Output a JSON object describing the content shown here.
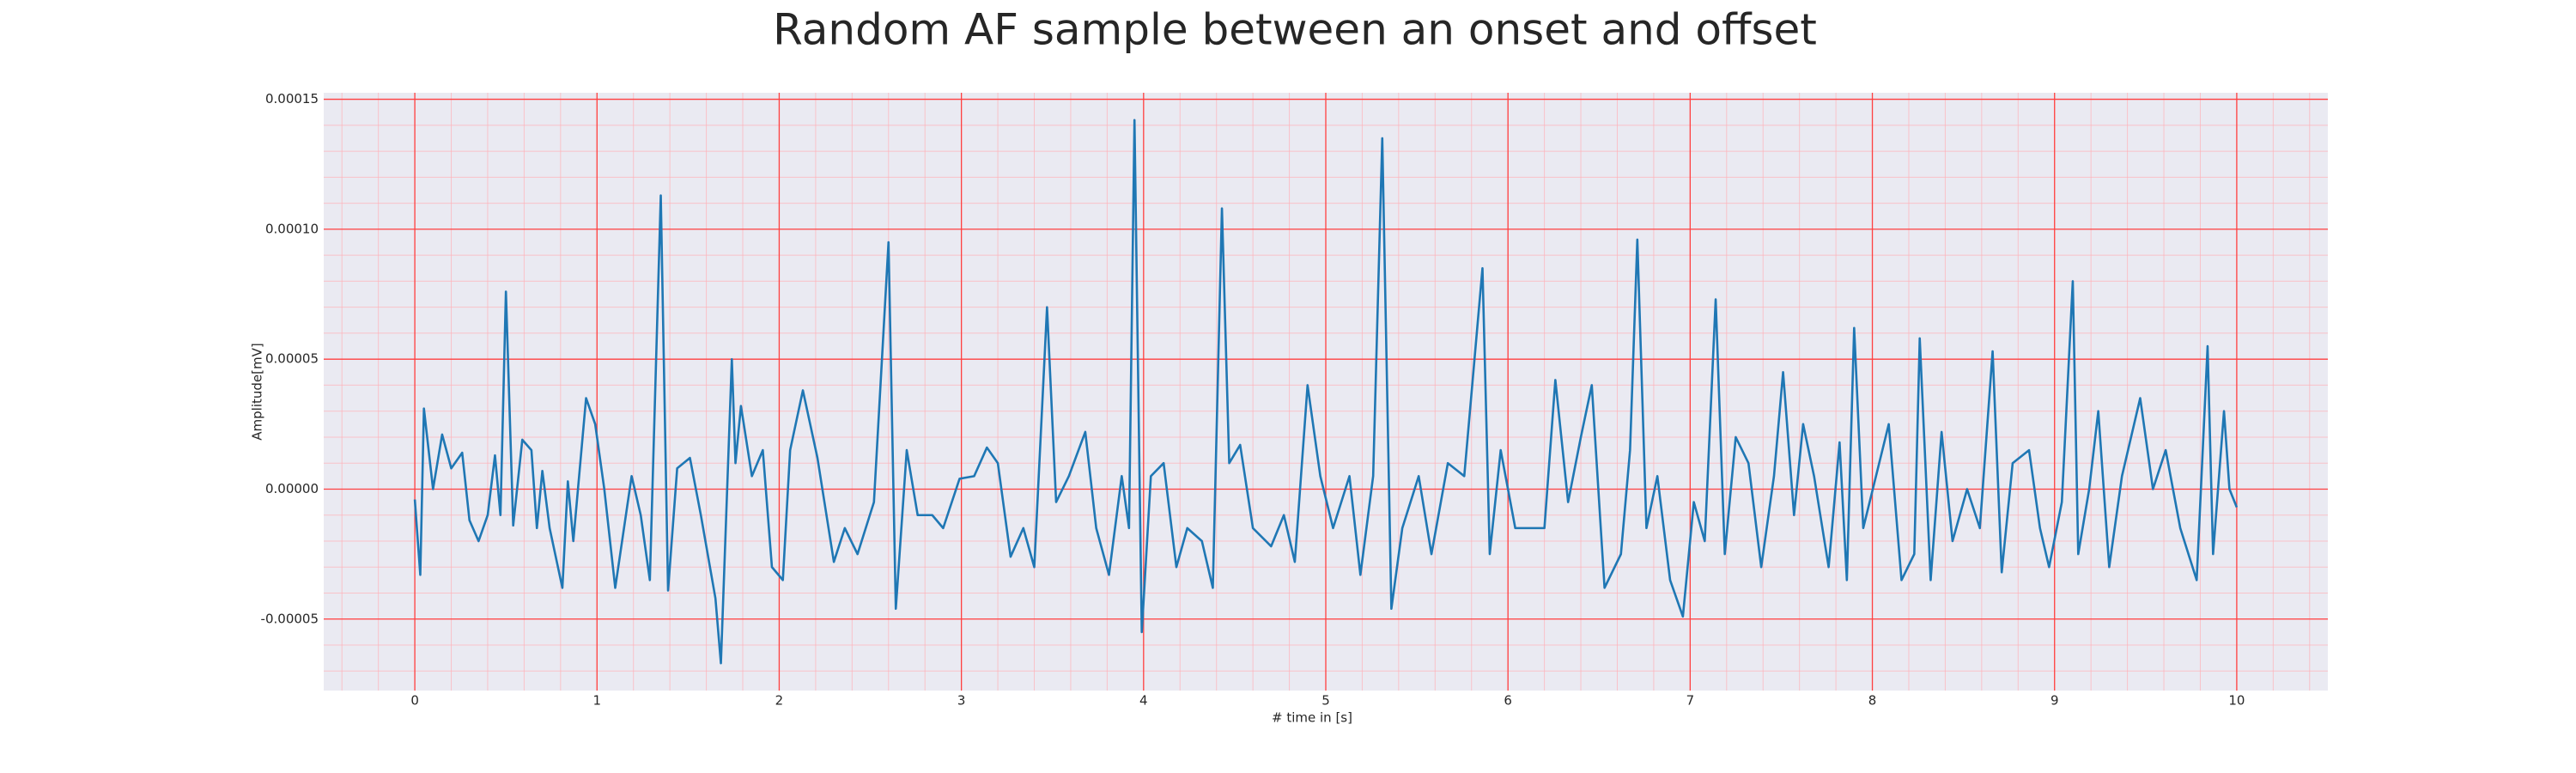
{
  "chart_data": {
    "type": "line",
    "title": "Random AF sample between an onset and offset",
    "xlabel": "# time in [s]",
    "ylabel": "Amplitude[mV]",
    "color": "#1f77b4",
    "grid": true,
    "minor_grid": true,
    "xlim": [
      -0.5,
      10.5
    ],
    "ylim": [
      -7.75e-05,
      0.0001525
    ],
    "xticks": [
      0,
      1,
      2,
      3,
      4,
      5,
      6,
      7,
      8,
      9,
      10
    ],
    "yticks": [
      {
        "value": -5e-05,
        "label": "-0.00005"
      },
      {
        "value": 0,
        "label": "0.00000"
      },
      {
        "value": 5e-05,
        "label": "0.00005"
      },
      {
        "value": 0.0001,
        "label": "0.00010"
      },
      {
        "value": 0.00015,
        "label": "0.00015"
      }
    ],
    "xminorticks": [
      -0.4,
      -0.2,
      0,
      0.2,
      0.4,
      0.6,
      0.8,
      1,
      1.2,
      1.4,
      1.6,
      1.8,
      2,
      2.2,
      2.4,
      2.6,
      2.8,
      3,
      3.2,
      3.4,
      3.6,
      3.8,
      4,
      4.2,
      4.4,
      4.6,
      4.8,
      5,
      5.2,
      5.4,
      5.6,
      5.8,
      6,
      6.2,
      6.4,
      6.6,
      6.8,
      7,
      7.2,
      7.4,
      7.6,
      7.8,
      8,
      8.2,
      8.4,
      8.6,
      8.8,
      9,
      9.2,
      9.4,
      9.6,
      9.8,
      10,
      10.2,
      10.4
    ],
    "yminorticks": [
      -7e-05,
      -6e-05,
      -5e-05,
      -4e-05,
      -3e-05,
      -2e-05,
      -1e-05,
      0,
      1e-05,
      2e-05,
      3e-05,
      4e-05,
      5e-05,
      6e-05,
      7e-05,
      8e-05,
      9e-05,
      0.0001,
      0.00011,
      0.00012,
      0.00013,
      0.00014,
      0.00015
    ],
    "x": [
      0,
      0.03,
      0.05,
      0.1,
      0.15,
      0.2,
      0.26,
      0.3,
      0.35,
      0.4,
      0.44,
      0.47,
      0.5,
      0.54,
      0.59,
      0.64,
      0.67,
      0.7,
      0.74,
      0.81,
      0.84,
      0.87,
      0.94,
      0.99,
      1.04,
      1.1,
      1.19,
      1.24,
      1.29,
      1.35,
      1.39,
      1.44,
      1.51,
      1.57,
      1.65,
      1.68,
      1.74,
      1.76,
      1.79,
      1.85,
      1.91,
      1.96,
      2.02,
      2.06,
      2.13,
      2.21,
      2.3,
      2.36,
      2.43,
      2.52,
      2.6,
      2.64,
      2.7,
      2.76,
      2.84,
      2.9,
      2.99,
      3.07,
      3.14,
      3.2,
      3.27,
      3.34,
      3.4,
      3.47,
      3.52,
      3.59,
      3.68,
      3.74,
      3.81,
      3.88,
      3.92,
      3.95,
      3.99,
      4.04,
      4.11,
      4.18,
      4.24,
      4.32,
      4.38,
      4.43,
      4.47,
      4.53,
      4.6,
      4.7,
      4.77,
      4.83,
      4.9,
      4.97,
      5.04,
      5.13,
      5.19,
      5.26,
      5.31,
      5.36,
      5.42,
      5.51,
      5.58,
      5.67,
      5.76,
      5.86,
      5.9,
      5.96,
      6.04,
      6.13,
      6.2,
      6.26,
      6.33,
      6.4,
      6.46,
      6.53,
      6.62,
      6.67,
      6.71,
      6.76,
      6.82,
      6.89,
      6.96,
      7.02,
      7.08,
      7.14,
      7.19,
      7.25,
      7.32,
      7.39,
      7.46,
      7.51,
      7.57,
      7.62,
      7.68,
      7.76,
      7.82,
      7.86,
      7.9,
      7.95,
      8.02,
      8.09,
      8.16,
      8.23,
      8.26,
      8.32,
      8.38,
      8.44,
      8.52,
      8.59,
      8.66,
      8.71,
      8.77,
      8.86,
      8.92,
      8.97,
      9.04,
      9.1,
      9.13,
      9.19,
      9.24,
      9.3,
      9.37,
      9.47,
      9.54,
      9.61,
      9.69,
      9.78,
      9.84,
      9.87,
      9.93,
      9.96,
      10
    ],
    "values": [
      -4e-06,
      -3.3e-05,
      3.1e-05,
      0,
      2.1e-05,
      8e-06,
      1.4e-05,
      -1.2e-05,
      -2e-05,
      -1e-05,
      1.3e-05,
      -1e-05,
      7.6e-05,
      -1.4e-05,
      1.9e-05,
      1.5e-05,
      -1.5e-05,
      7e-06,
      -1.5e-05,
      -3.8e-05,
      3e-06,
      -2e-05,
      3.5e-05,
      2.5e-05,
      0,
      -3.8e-05,
      5e-06,
      -1e-05,
      -3.5e-05,
      0.000113,
      -3.9e-05,
      8e-06,
      1.2e-05,
      -1e-05,
      -4.2e-05,
      -6.7e-05,
      5e-05,
      1e-05,
      3.2e-05,
      5e-06,
      1.5e-05,
      -3e-05,
      -3.5e-05,
      1.5e-05,
      3.8e-05,
      1.2e-05,
      -2.8e-05,
      -1.5e-05,
      -2.5e-05,
      -5e-06,
      9.5e-05,
      -4.6e-05,
      1.5e-05,
      -1e-05,
      -1e-05,
      -1.5e-05,
      4e-06,
      5e-06,
      1.6e-05,
      1e-05,
      -2.6e-05,
      -1.5e-05,
      -3e-05,
      7e-05,
      -5e-06,
      5e-06,
      2.2e-05,
      -1.5e-05,
      -3.3e-05,
      5e-06,
      -1.5e-05,
      0.000142,
      -5.5e-05,
      5e-06,
      1e-05,
      -3e-05,
      -1.5e-05,
      -2e-05,
      -3.8e-05,
      0.000108,
      1e-05,
      1.7e-05,
      -1.5e-05,
      -2.2e-05,
      -1e-05,
      -2.8e-05,
      4e-05,
      5e-06,
      -1.5e-05,
      5e-06,
      -3.3e-05,
      5e-06,
      0.000135,
      -4.6e-05,
      -1.5e-05,
      5e-06,
      -2.5e-05,
      1e-05,
      5e-06,
      8.5e-05,
      -2.5e-05,
      1.5e-05,
      -1.5e-05,
      -1.5e-05,
      -1.5e-05,
      4.2e-05,
      -5e-06,
      2e-05,
      4e-05,
      -3.8e-05,
      -2.5e-05,
      1.5e-05,
      9.6e-05,
      -1.5e-05,
      5e-06,
      -3.5e-05,
      -4.9e-05,
      -5e-06,
      -2e-05,
      7.3e-05,
      -2.5e-05,
      2e-05,
      1e-05,
      -3e-05,
      5e-06,
      4.5e-05,
      -1e-05,
      2.5e-05,
      5e-06,
      -3e-05,
      1.8e-05,
      -3.5e-05,
      6.2e-05,
      -1.5e-05,
      5e-06,
      2.5e-05,
      -3.5e-05,
      -2.5e-05,
      5.8e-05,
      -3.5e-05,
      2.2e-05,
      -2e-05,
      0,
      -1.5e-05,
      5.3e-05,
      -3.2e-05,
      1e-05,
      1.5e-05,
      -1.5e-05,
      -3e-05,
      -5e-06,
      8e-05,
      -2.5e-05,
      0,
      3e-05,
      -3e-05,
      5e-06,
      3.5e-05,
      0,
      1.5e-05,
      -1.5e-05,
      -3.5e-05,
      5.5e-05,
      -2.5e-05,
      3e-05,
      0,
      -7e-06
    ]
  }
}
